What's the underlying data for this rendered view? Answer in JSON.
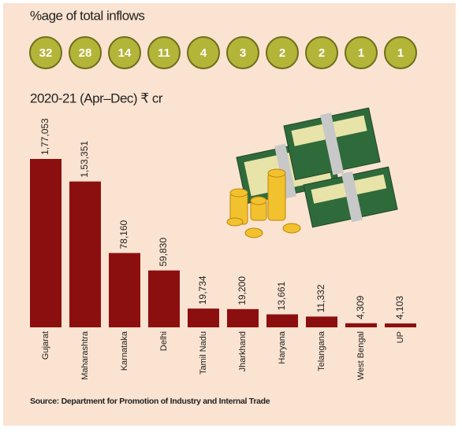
{
  "chart_data": {
    "type": "bar",
    "share_title": "%age of total inflows",
    "shares": [
      32,
      28,
      14,
      11,
      4,
      3,
      2,
      2,
      1,
      1
    ],
    "title": "2020-21 (Apr–Dec) ₹ cr",
    "categories": [
      "Gujarat",
      "Maharashtra",
      "Karnataka",
      "Delhi",
      "Tamil Nadu",
      "Jharkhand",
      "Haryana",
      "Telangana",
      "West Bengal",
      "UP"
    ],
    "values": [
      177053,
      153351,
      78160,
      59830,
      19734,
      19200,
      13661,
      11332,
      4309,
      4103
    ],
    "value_labels": [
      "1,77,053",
      "1,53,351",
      "78,160",
      "59,830",
      "19,734",
      "19,200",
      "13,661",
      "11,332",
      "4,309",
      "4,103"
    ],
    "color": "#8c0f10",
    "source": "Source: Department for Promotion of Industry and Internal Trade"
  }
}
